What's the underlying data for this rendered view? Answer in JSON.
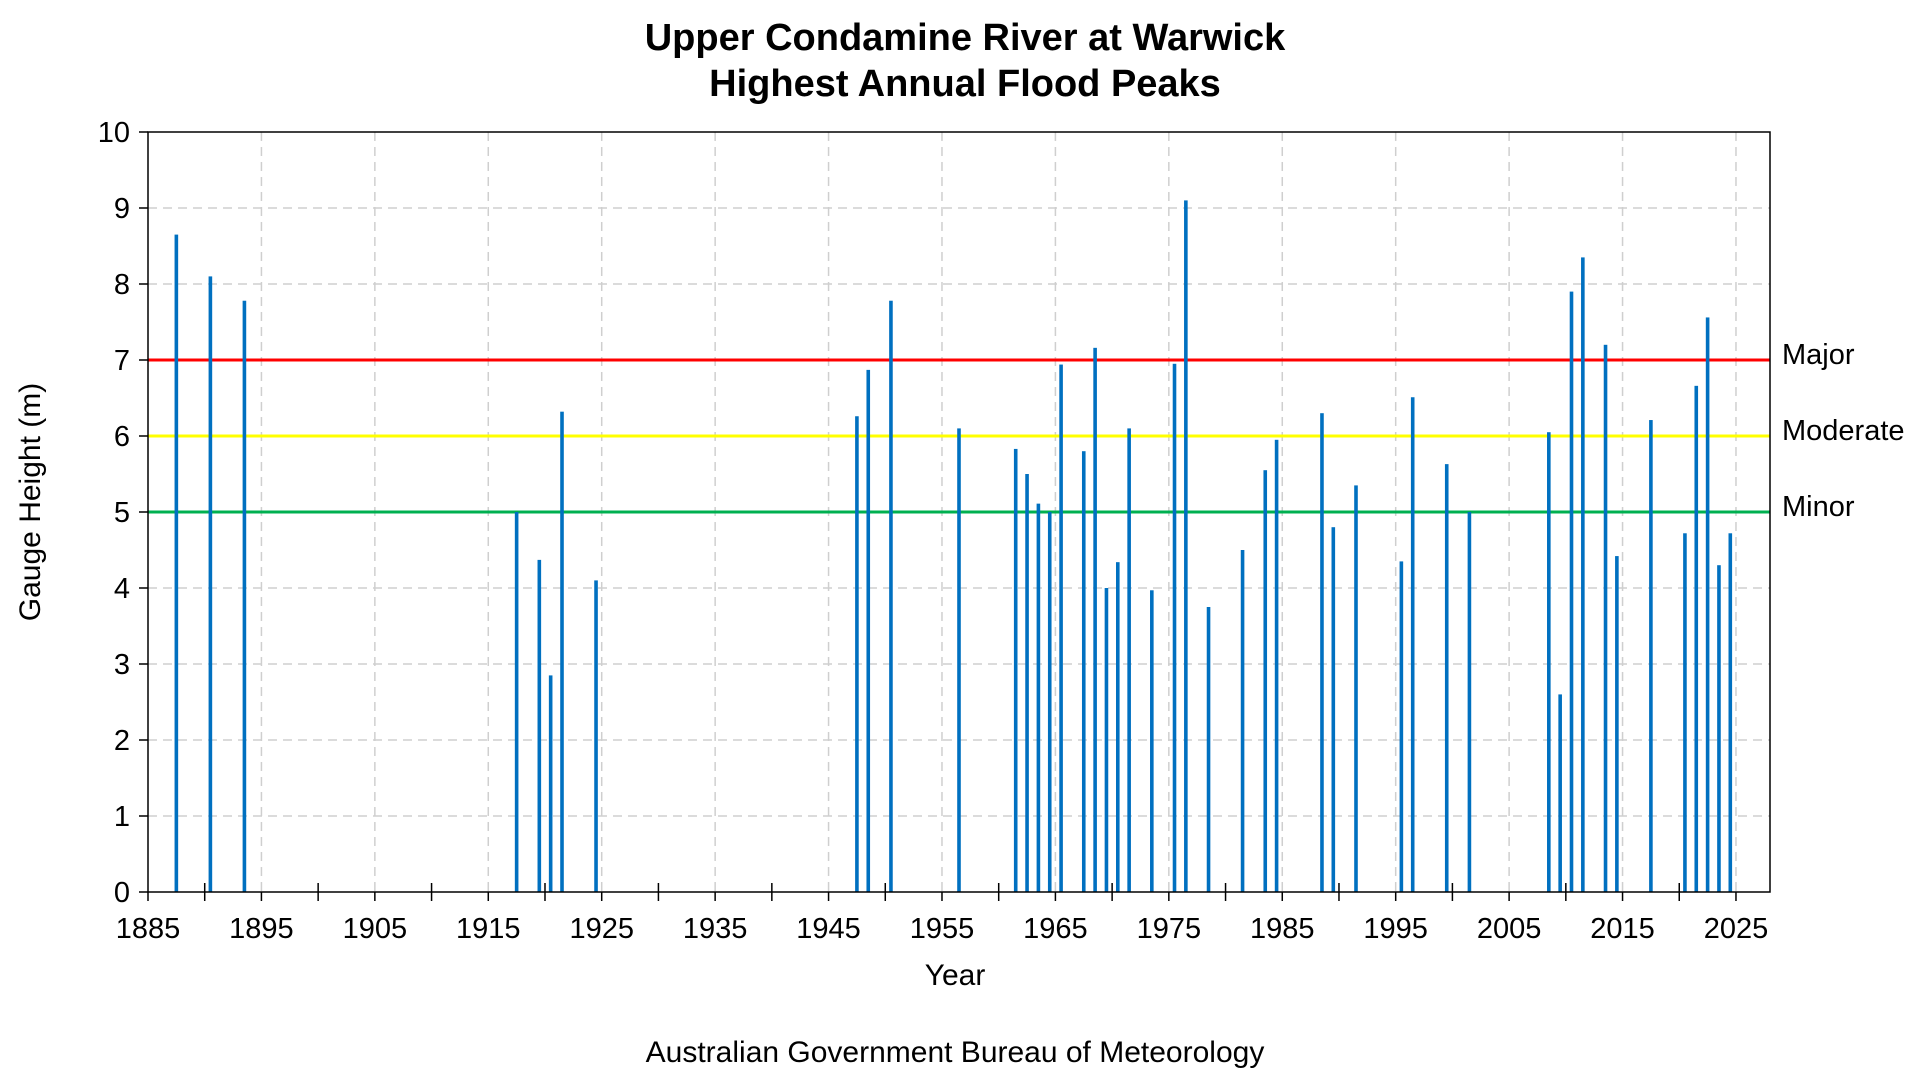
{
  "chart_data": {
    "type": "bar",
    "title_line1": "Upper Condamine River at Warwick",
    "title_line2": "Highest Annual Flood Peaks",
    "xlabel": "Year",
    "ylabel": "Gauge Height (m)",
    "xlim": [
      1885,
      2028
    ],
    "ylim": [
      0,
      10
    ],
    "x_ticks": [
      "1885",
      "1895",
      "1905",
      "1915",
      "1925",
      "1935",
      "1945",
      "1955",
      "1965",
      "1975",
      "1985",
      "1995",
      "2005",
      "2015",
      "2025"
    ],
    "y_ticks": [
      "0",
      "1",
      "2",
      "3",
      "4",
      "5",
      "6",
      "7",
      "8",
      "9",
      "10"
    ],
    "grid": true,
    "bar_color": "#0070C0",
    "series": [
      {
        "x": [
          1887.5,
          1890.5,
          1893.5,
          1917.5,
          1919.5,
          1920.5,
          1921.5,
          1924.5,
          1947.5,
          1948.5,
          1950.5,
          1956.5,
          1961.5,
          1962.5,
          1963.5,
          1964.5,
          1965.5,
          1967.5,
          1968.5,
          1969.5,
          1970.5,
          1971.5,
          1973.5,
          1975.5,
          1976.5,
          1978.5,
          1981.5,
          1983.5,
          1984.5,
          1988.5,
          1989.5,
          1991.5,
          1995.5,
          1996.5,
          1999.5,
          2001.5,
          2008.5,
          2009.5,
          2010.5,
          2011.5,
          2013.5,
          2014.5,
          2017.5,
          2020.5,
          2021.5,
          2022.5,
          2023.5,
          2024.5
        ],
        "values": [
          8.65,
          8.1,
          7.78,
          5.0,
          4.37,
          2.85,
          6.32,
          4.1,
          6.26,
          6.87,
          7.78,
          6.1,
          5.83,
          5.5,
          5.11,
          5.0,
          6.94,
          5.8,
          7.16,
          4.0,
          4.34,
          6.1,
          3.97,
          6.95,
          9.1,
          3.75,
          4.5,
          5.55,
          5.95,
          6.3,
          4.8,
          5.35,
          4.35,
          6.51,
          5.63,
          5.0,
          6.05,
          2.6,
          7.9,
          8.35,
          7.2,
          4.42,
          6.21,
          4.72,
          6.66,
          7.56,
          4.3,
          4.72
        ]
      }
    ],
    "thresholds": [
      {
        "label": "Major",
        "value": 7,
        "color": "#FF0000"
      },
      {
        "label": "Moderate",
        "value": 6,
        "color": "#FFFF00"
      },
      {
        "label": "Minor",
        "value": 5,
        "color": "#00B050"
      }
    ]
  },
  "footer": {
    "credit": "Australian Government Bureau of Meteorology"
  }
}
